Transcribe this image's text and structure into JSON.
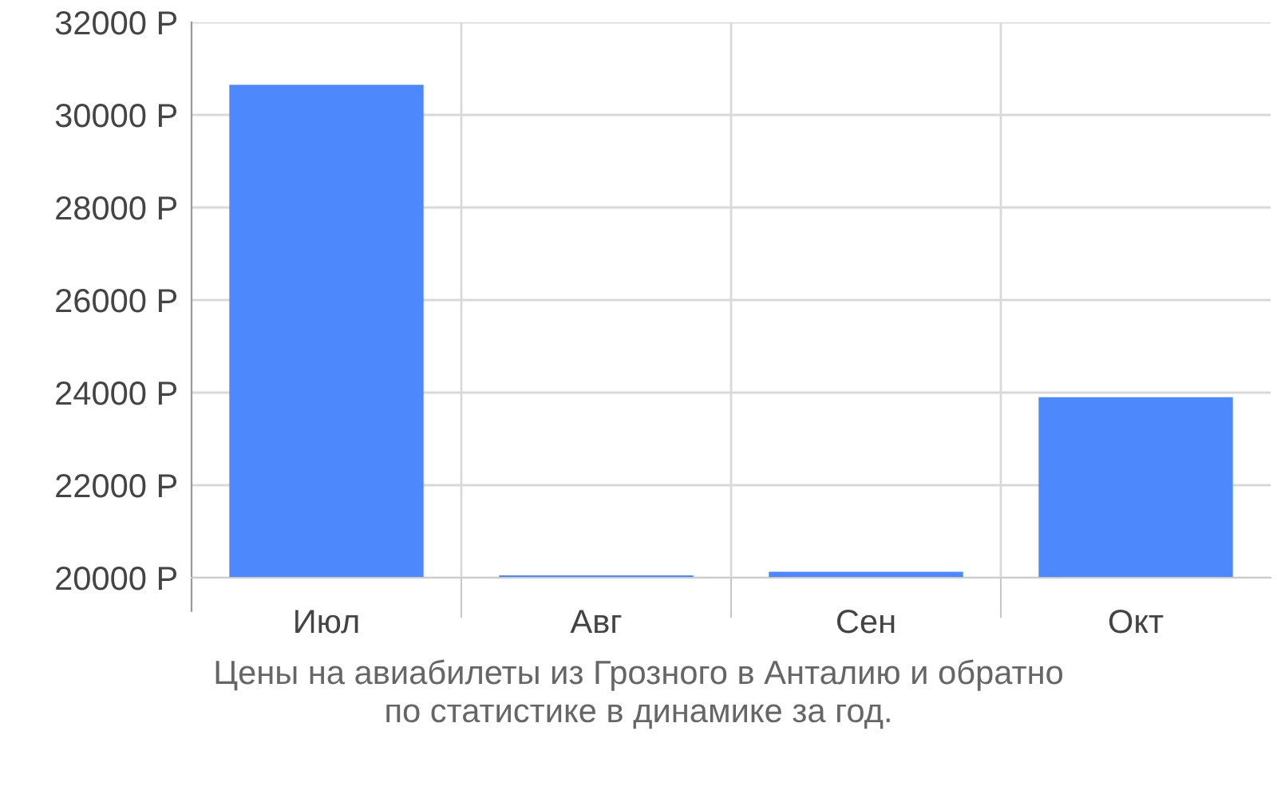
{
  "chart_data": {
    "type": "bar",
    "categories": [
      "Июл",
      "Авг",
      "Сен",
      "Окт"
    ],
    "values": [
      30650,
      20050,
      20130,
      23900
    ],
    "color": "#4d88fd",
    "ylim": [
      20000,
      32000
    ],
    "yticks": [
      {
        "value": 20000,
        "label": "20000 Р"
      },
      {
        "value": 22000,
        "label": "22000 Р"
      },
      {
        "value": 24000,
        "label": "24000 Р"
      },
      {
        "value": 26000,
        "label": "26000 Р"
      },
      {
        "value": 28000,
        "label": "28000 Р"
      },
      {
        "value": 30000,
        "label": "30000 Р"
      },
      {
        "value": 32000,
        "label": "32000 Р"
      }
    ],
    "grid": true,
    "annotations": [
      "Цены на авиабилеты из Грозного в Анталию и обратно\nпо статистике в динамике за год."
    ]
  }
}
